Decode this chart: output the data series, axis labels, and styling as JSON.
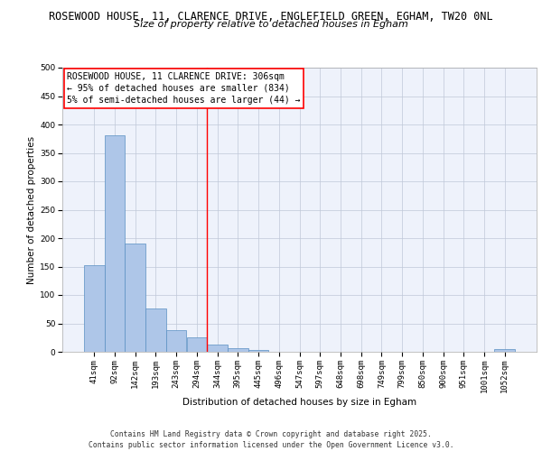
{
  "title_line1": "ROSEWOOD HOUSE, 11, CLARENCE DRIVE, ENGLEFIELD GREEN, EGHAM, TW20 0NL",
  "title_line2": "Size of property relative to detached houses in Egham",
  "xlabel": "Distribution of detached houses by size in Egham",
  "ylabel": "Number of detached properties",
  "bin_labels": [
    "41sqm",
    "92sqm",
    "142sqm",
    "193sqm",
    "243sqm",
    "294sqm",
    "344sqm",
    "395sqm",
    "445sqm",
    "496sqm",
    "547sqm",
    "597sqm",
    "648sqm",
    "698sqm",
    "749sqm",
    "799sqm",
    "850sqm",
    "900sqm",
    "951sqm",
    "1001sqm",
    "1052sqm"
  ],
  "bar_heights": [
    152,
    381,
    191,
    76,
    38,
    25,
    13,
    7,
    3,
    0,
    0,
    0,
    0,
    0,
    0,
    0,
    0,
    0,
    0,
    0,
    4
  ],
  "bar_color": "#aec6e8",
  "bar_edge_color": "#5a8fc2",
  "vline_x": 5.5,
  "vline_color": "red",
  "annotation_text": "ROSEWOOD HOUSE, 11 CLARENCE DRIVE: 306sqm\n← 95% of detached houses are smaller (834)\n5% of semi-detached houses are larger (44) →",
  "annotation_box_color": "white",
  "annotation_box_edge": "red",
  "ylim": [
    0,
    500
  ],
  "yticks": [
    0,
    50,
    100,
    150,
    200,
    250,
    300,
    350,
    400,
    450,
    500
  ],
  "background_color": "#eef2fb",
  "grid_color": "#c0c8d8",
  "footer_text": "Contains HM Land Registry data © Crown copyright and database right 2025.\nContains public sector information licensed under the Open Government Licence v3.0.",
  "font_size_title1": 8.5,
  "font_size_title2": 8.0,
  "font_size_axis_label": 7.5,
  "font_size_ticks": 6.5,
  "font_size_annotation": 7.0,
  "font_size_footer": 5.8
}
